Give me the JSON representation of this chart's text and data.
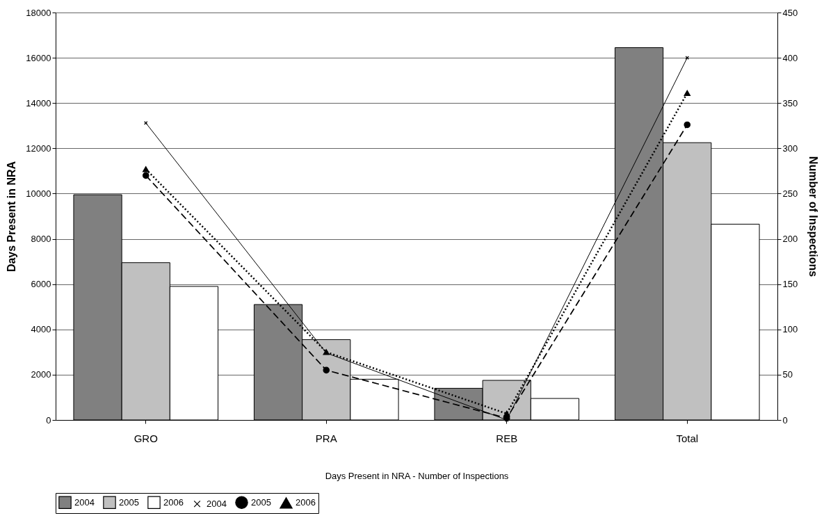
{
  "chart_data": {
    "type": "bar",
    "xlabel": "Days Present in NRA - Number of Inspections",
    "ylabel": "Days Present in NRA",
    "y2label": "Number of Inspections",
    "categories": [
      "GRO",
      "PRA",
      "REB",
      "Total"
    ],
    "ylim": [
      0,
      18000
    ],
    "yticks": [
      0,
      2000,
      4000,
      6000,
      8000,
      10000,
      12000,
      14000,
      16000,
      18000
    ],
    "y2lim": [
      0,
      450
    ],
    "y2ticks": [
      0,
      50,
      100,
      150,
      200,
      250,
      300,
      350,
      400,
      450
    ],
    "grid": "y",
    "legend": "bottom",
    "series": [
      {
        "name": "2004",
        "color": "#808080",
        "values": [
          9950,
          5100,
          1400,
          16450
        ]
      },
      {
        "name": "2005",
        "color": "#c0c0c0",
        "values": [
          6950,
          3550,
          1750,
          12250
        ]
      },
      {
        "name": "2006",
        "color": "#ffffff",
        "values": [
          5900,
          1800,
          950,
          8650
        ]
      },
      {
        "name": "2004",
        "type": "line",
        "axis": "y2",
        "color": "#000000",
        "marker": "cross",
        "line_style": "solid",
        "values": [
          328,
          74,
          0,
          400
        ]
      },
      {
        "name": "2005",
        "type": "line",
        "axis": "y2",
        "color": "#000000",
        "marker": "circle",
        "line_style": "dashed",
        "values": [
          270,
          55,
          2,
          326
        ]
      },
      {
        "name": "2006",
        "type": "line",
        "axis": "y2",
        "color": "#000000",
        "marker": "triangle",
        "line_style": "dotted",
        "values": [
          277,
          75,
          7,
          361
        ]
      }
    ]
  }
}
